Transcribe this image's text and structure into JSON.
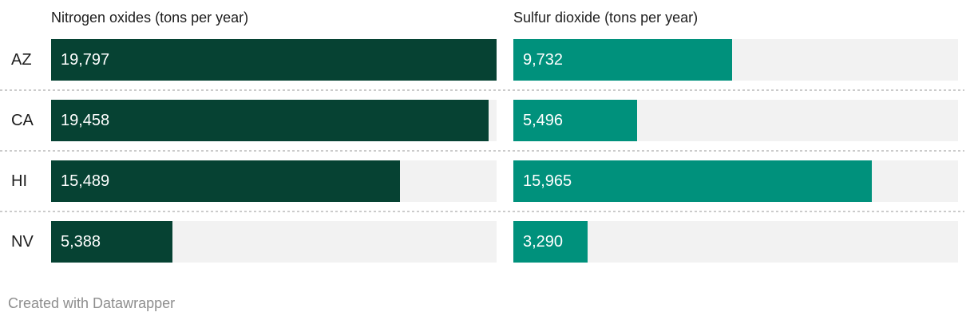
{
  "chart_data": {
    "type": "bar",
    "orientation": "horizontal",
    "title": "",
    "categories": [
      "AZ",
      "CA",
      "HI",
      "NV"
    ],
    "series": [
      {
        "name": "Nitrogen oxides (tons per year)",
        "values": [
          19797,
          19458,
          15489,
          5388
        ],
        "labels": [
          "19,797",
          "19,458",
          "15,489",
          "5,388"
        ],
        "color": "#064233"
      },
      {
        "name": "Sulfur dioxide (tons per year)",
        "values": [
          9732,
          5496,
          15965,
          3290
        ],
        "labels": [
          "9,732",
          "5,496",
          "15,965",
          "3,290"
        ],
        "color": "#00917c"
      }
    ],
    "xlim": [
      0,
      19797
    ],
    "grid": false,
    "track_color": "#f2f2f2",
    "value_label_position": "inside-left",
    "legend_position": "column headers above bars"
  },
  "footer": {
    "credit": "Created with Datawrapper"
  }
}
